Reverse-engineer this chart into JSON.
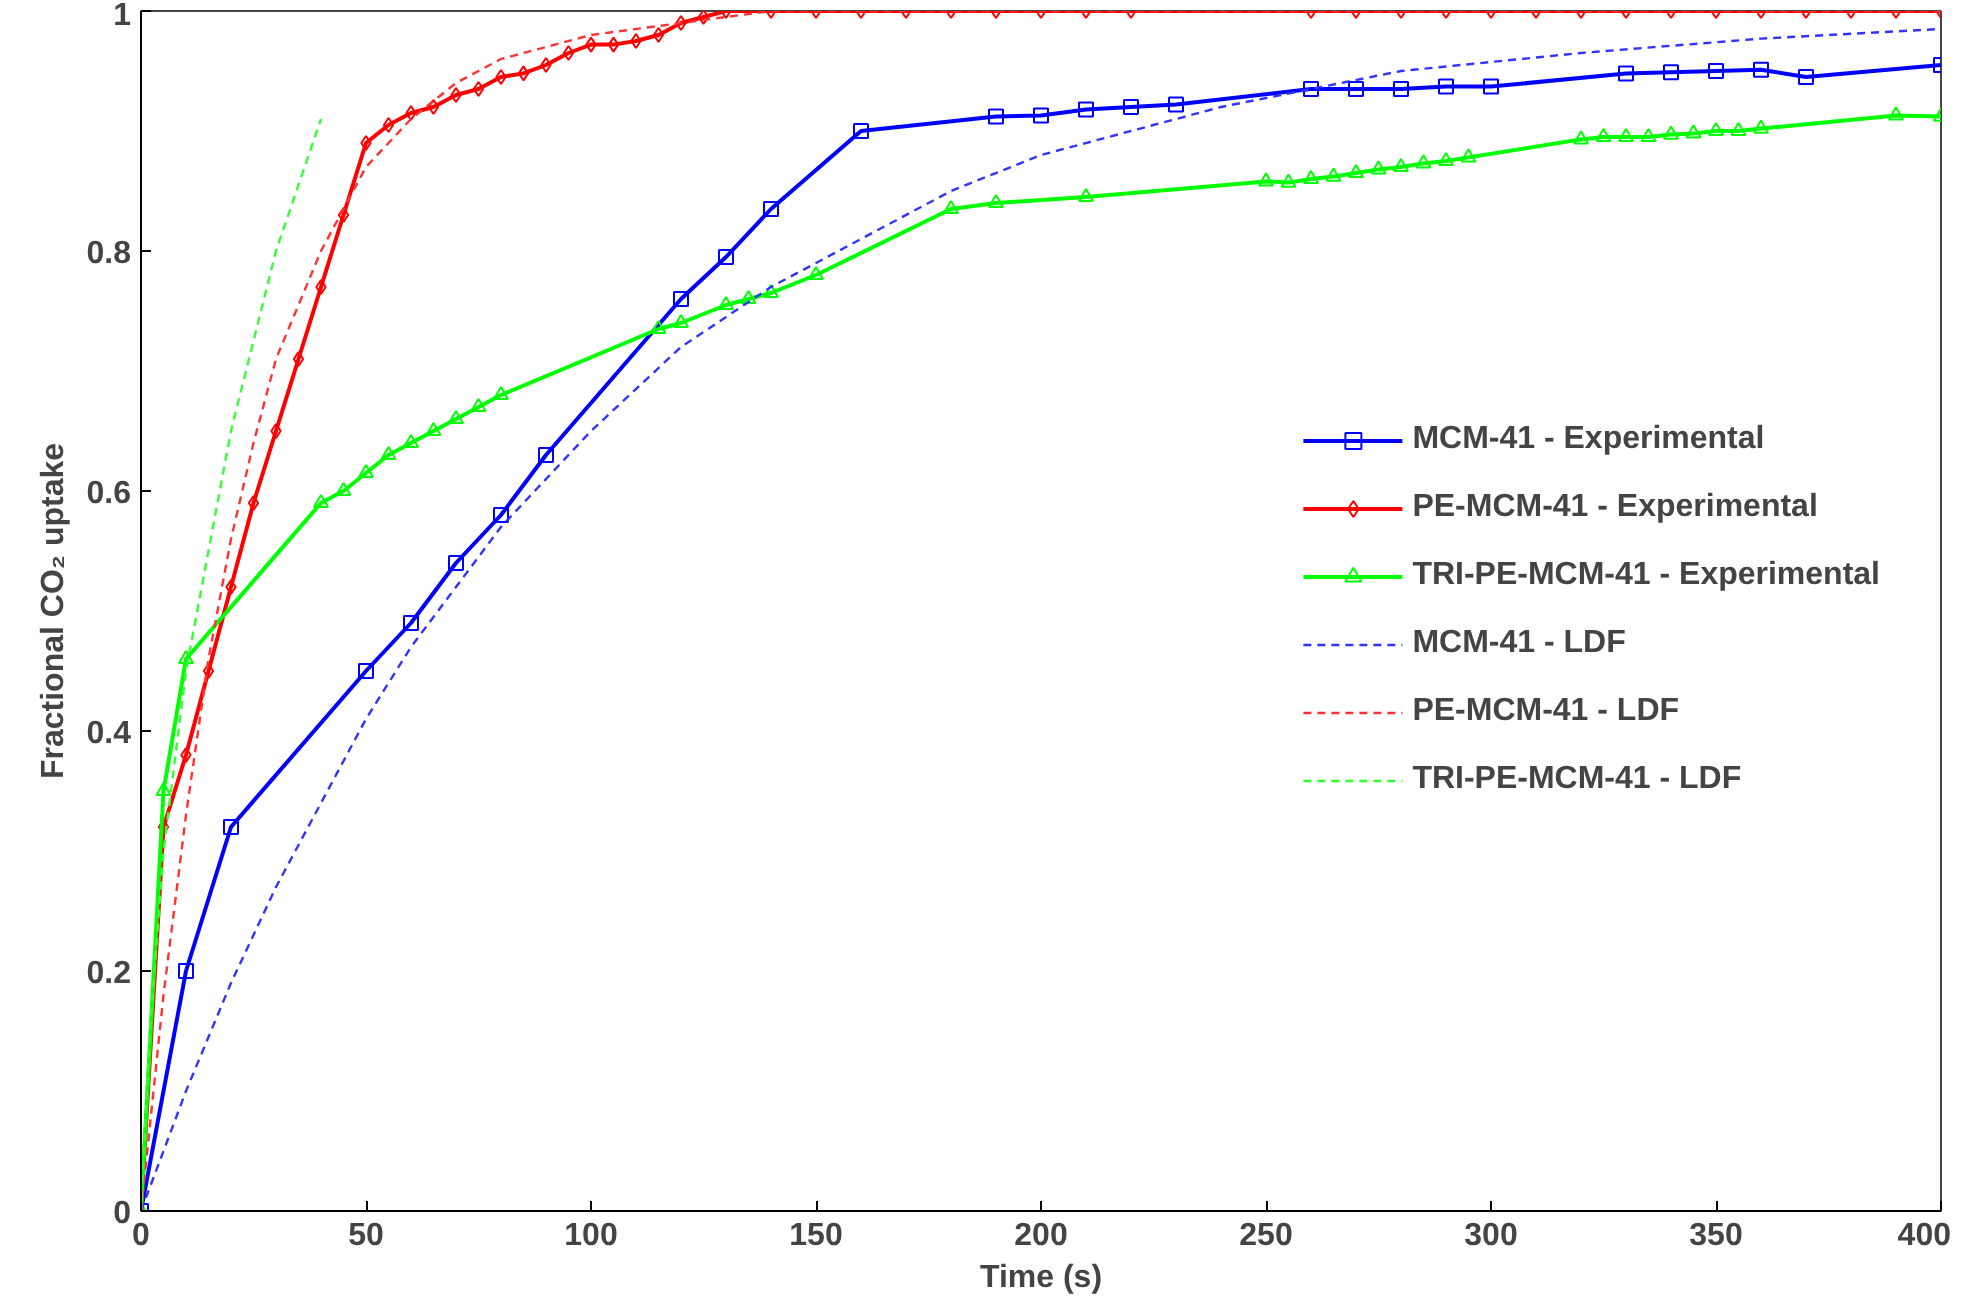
{
  "chart_data": {
    "type": "line",
    "xlabel": "Time (s)",
    "ylabel": "Fractional CO₂ uptake",
    "xlim": [
      0,
      400
    ],
    "xticks": [
      0,
      50,
      100,
      150,
      200,
      250,
      300,
      350,
      400
    ],
    "ylim": [
      0,
      1
    ],
    "yticks": [
      0,
      0.2,
      0.4,
      0.6,
      0.8,
      1
    ],
    "grid": false,
    "legend": "right",
    "series": [
      {
        "name": "MCM-41 - Experimental",
        "color": "#0000ff",
        "marker": "square",
        "line_style": "solid",
        "x": [
          0,
          10,
          20,
          50,
          60,
          70,
          80,
          90,
          120,
          130,
          140,
          160,
          190,
          200,
          210,
          220,
          230,
          260,
          270,
          280,
          290,
          300,
          330,
          340,
          350,
          360,
          370,
          400
        ],
        "values": [
          0,
          0.2,
          0.32,
          0.45,
          0.49,
          0.54,
          0.58,
          0.63,
          0.76,
          0.795,
          0.835,
          0.9,
          0.912,
          0.913,
          0.918,
          0.92,
          0.922,
          0.935,
          0.935,
          0.935,
          0.937,
          0.937,
          0.948,
          0.949,
          0.95,
          0.951,
          0.945,
          0.955
        ]
      },
      {
        "name": "PE-MCM-41 - Experimental",
        "color": "#ff0000",
        "marker": "diamond",
        "line_style": "solid",
        "x": [
          0,
          5,
          10,
          15,
          20,
          25,
          30,
          35,
          40,
          45,
          50,
          55,
          60,
          65,
          70,
          75,
          80,
          85,
          90,
          95,
          100,
          105,
          110,
          115,
          120,
          125,
          130,
          140,
          150,
          160,
          170,
          180,
          190,
          200,
          210,
          220,
          260,
          270,
          280,
          290,
          300,
          310,
          320,
          330,
          340,
          350,
          360,
          370,
          380,
          390,
          400
        ],
        "values": [
          0,
          0.32,
          0.38,
          0.45,
          0.52,
          0.59,
          0.65,
          0.71,
          0.77,
          0.83,
          0.89,
          0.905,
          0.915,
          0.92,
          0.93,
          0.935,
          0.945,
          0.948,
          0.955,
          0.965,
          0.972,
          0.972,
          0.975,
          0.98,
          0.99,
          0.995,
          1,
          1,
          1,
          1,
          1,
          1,
          1,
          1,
          1,
          1,
          1,
          1,
          1,
          1,
          1,
          1,
          1,
          1,
          1,
          1,
          1,
          1,
          1,
          1,
          1
        ]
      },
      {
        "name": "TRI-PE-MCM-41 - Experimental",
        "color": "#00ff00",
        "marker": "triangle",
        "line_style": "solid",
        "x": [
          0,
          5,
          10,
          40,
          45,
          50,
          55,
          60,
          65,
          70,
          75,
          80,
          115,
          120,
          130,
          135,
          140,
          150,
          180,
          190,
          210,
          250,
          255,
          260,
          265,
          270,
          275,
          280,
          285,
          290,
          295,
          320,
          325,
          330,
          335,
          340,
          345,
          350,
          355,
          360,
          390,
          400
        ],
        "values": [
          0,
          0.35,
          0.46,
          0.59,
          0.6,
          0.615,
          0.63,
          0.64,
          0.65,
          0.66,
          0.67,
          0.68,
          0.735,
          0.74,
          0.755,
          0.76,
          0.765,
          0.78,
          0.835,
          0.84,
          0.845,
          0.858,
          0.857,
          0.86,
          0.862,
          0.865,
          0.868,
          0.87,
          0.873,
          0.875,
          0.878,
          0.893,
          0.895,
          0.895,
          0.895,
          0.897,
          0.898,
          0.9,
          0.9,
          0.902,
          0.913,
          0.912
        ]
      },
      {
        "name": "MCM-41 - LDF",
        "color": "#3333ff",
        "marker": "none",
        "line_style": "dashed",
        "x": [
          0,
          10,
          20,
          30,
          40,
          50,
          60,
          80,
          100,
          120,
          140,
          160,
          180,
          200,
          240,
          280,
          320,
          360,
          400
        ],
        "values": [
          0,
          0.1,
          0.19,
          0.27,
          0.34,
          0.41,
          0.47,
          0.57,
          0.65,
          0.72,
          0.77,
          0.81,
          0.85,
          0.88,
          0.92,
          0.95,
          0.965,
          0.977,
          0.985
        ]
      },
      {
        "name": "PE-MCM-41 - LDF",
        "color": "#ff3333",
        "marker": "none",
        "line_style": "dashed",
        "x": [
          0,
          5,
          10,
          15,
          20,
          25,
          30,
          40,
          50,
          60,
          70,
          80,
          100,
          120,
          140,
          400
        ],
        "values": [
          0,
          0.18,
          0.33,
          0.46,
          0.56,
          0.64,
          0.71,
          0.8,
          0.87,
          0.91,
          0.94,
          0.96,
          0.98,
          0.99,
          1,
          1
        ]
      },
      {
        "name": "TRI-PE-MCM-41 - LDF",
        "color": "#33ff33",
        "marker": "none",
        "line_style": "dashed",
        "x": [
          0,
          2,
          5,
          10,
          20,
          30,
          40
        ],
        "values": [
          0,
          0.15,
          0.3,
          0.45,
          0.65,
          0.8,
          0.91
        ]
      }
    ]
  }
}
